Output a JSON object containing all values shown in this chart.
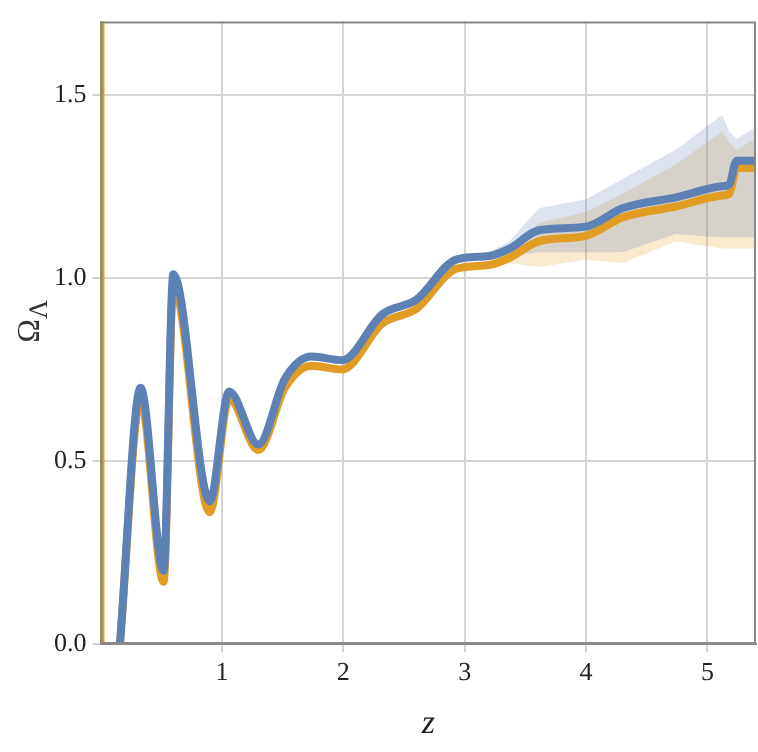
{
  "chart_data": {
    "type": "line",
    "xlabel": "z",
    "ylabel": "Ω$_{Λ}$",
    "xlim": [
      0,
      5.4
    ],
    "ylim": [
      0,
      1.7
    ],
    "xticks": [
      1,
      2,
      3,
      4,
      5
    ],
    "yticks": [
      {
        "value": 0,
        "label": "0.0"
      },
      0.5,
      {
        "value": 1,
        "label": "1.0"
      },
      1.5
    ],
    "grid": true,
    "legend": false,
    "marker": "none",
    "line_style": "solid",
    "series": [
      {
        "color": "#5e81b5",
        "x": [
          0.16,
          0.33,
          0.52,
          0.6,
          0.9,
          1.06,
          1.3,
          1.52,
          1.74,
          1.99,
          2.32,
          2.6,
          2.93,
          3.2,
          3.37,
          3.61,
          4.0,
          4.3,
          4.74,
          5.12,
          5.18,
          5.24,
          5.39
        ],
        "values": [
          0,
          0.7,
          0.2,
          1.01,
          0.39,
          0.69,
          0.545,
          0.725,
          0.785,
          0.775,
          0.9,
          0.94,
          1.05,
          1.06,
          1.08,
          1.13,
          1.14,
          1.19,
          1.22,
          1.25,
          1.255,
          1.32,
          1.32
        ],
        "lower": [
          null,
          null,
          null,
          null,
          null,
          null,
          null,
          null,
          null,
          null,
          null,
          null,
          null,
          1.05,
          1.06,
          1.07,
          1.07,
          1.07,
          1.12,
          1.11,
          1.11,
          1.11,
          1.11
        ],
        "upper": [
          null,
          null,
          null,
          null,
          null,
          null,
          null,
          null,
          null,
          null,
          null,
          null,
          null,
          1.07,
          1.1,
          1.19,
          1.215,
          1.27,
          1.35,
          1.445,
          1.4,
          1.38,
          1.41
        ]
      },
      {
        "color": "#e19c24",
        "x": [
          0,
          0,
          0.1,
          0.16,
          0.33,
          0.52,
          0.6,
          0.9,
          1.06,
          1.3,
          1.52,
          1.74,
          1.99,
          2.32,
          2.6,
          2.93,
          3.2,
          3.37,
          3.61,
          4.0,
          4.3,
          4.74,
          5.12,
          5.18,
          5.24,
          5.39
        ],
        "values": [
          1.7,
          0,
          null,
          0,
          0.67,
          0.17,
          0.98,
          0.36,
          0.67,
          0.53,
          0.7,
          0.76,
          0.75,
          0.875,
          0.915,
          1.025,
          1.035,
          1.055,
          1.1,
          1.115,
          1.165,
          1.195,
          1.225,
          1.23,
          1.3,
          1.3
        ],
        "lower": [
          null,
          null,
          null,
          null,
          null,
          null,
          null,
          null,
          null,
          null,
          null,
          null,
          null,
          null,
          null,
          null,
          1.03,
          1.04,
          1.03,
          1.05,
          1.04,
          1.1,
          1.08,
          1.08,
          1.08,
          1.08
        ],
        "upper": [
          null,
          null,
          null,
          null,
          null,
          null,
          null,
          null,
          null,
          null,
          null,
          null,
          null,
          null,
          null,
          null,
          1.05,
          1.08,
          1.15,
          1.18,
          1.23,
          1.31,
          1.4,
          1.37,
          1.35,
          1.38
        ]
      }
    ]
  }
}
